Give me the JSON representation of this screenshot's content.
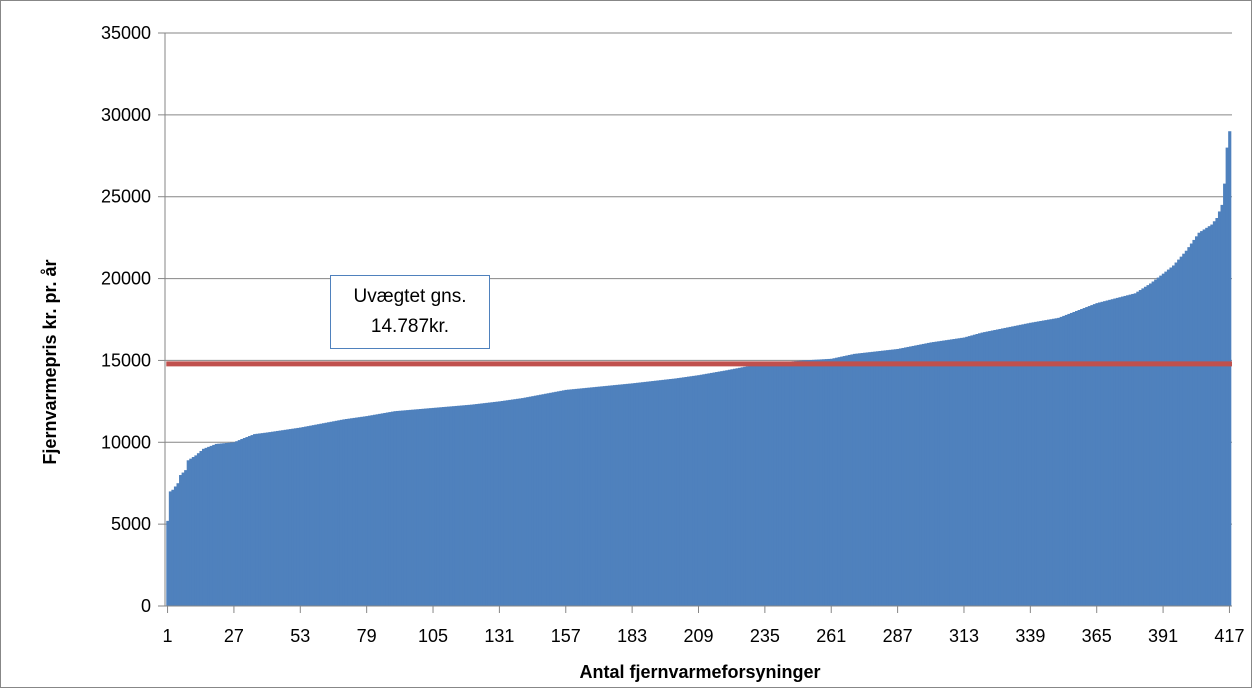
{
  "chart_data": {
    "type": "bar",
    "xlabel": "Antal fjernvarmeforsyninger",
    "ylabel": "Fjernvarmepris kr. pr. år",
    "ylim": [
      0,
      35000
    ],
    "yticks": [
      0,
      5000,
      10000,
      15000,
      20000,
      25000,
      30000,
      35000
    ],
    "xticks": [
      1,
      27,
      53,
      79,
      105,
      131,
      157,
      183,
      209,
      235,
      261,
      287,
      313,
      339,
      365,
      391,
      417
    ],
    "x_range": [
      1,
      417
    ],
    "grid": "horizontal",
    "legend": "none",
    "bar_color": "#4f81bd",
    "reference_line": {
      "value": 14787,
      "color": "#c0504d",
      "label_line1": "Uvægtet gns.",
      "label_line2": "14.787kr."
    },
    "profile_x": [
      1,
      2,
      3,
      5,
      6,
      8,
      9,
      12,
      15,
      20,
      27,
      30,
      35,
      40,
      53,
      70,
      79,
      90,
      105,
      120,
      131,
      140,
      157,
      170,
      183,
      200,
      209,
      220,
      230,
      235,
      250,
      261,
      270,
      287,
      300,
      313,
      320,
      339,
      350,
      365,
      380,
      386,
      391,
      395,
      400,
      405,
      410,
      412,
      414,
      415,
      416,
      417
    ],
    "profile_y": [
      5200,
      7000,
      7100,
      7500,
      8000,
      8300,
      8900,
      9200,
      9600,
      9900,
      10000,
      10200,
      10500,
      10600,
      10900,
      11400,
      11600,
      11900,
      12100,
      12300,
      12500,
      12700,
      13200,
      13400,
      13600,
      13900,
      14100,
      14400,
      14700,
      14800,
      15000,
      15100,
      15400,
      15700,
      16100,
      16400,
      16700,
      17300,
      17600,
      18500,
      19100,
      19700,
      20300,
      20800,
      21700,
      22800,
      23300,
      23700,
      24500,
      25800,
      28000,
      29000
    ]
  }
}
